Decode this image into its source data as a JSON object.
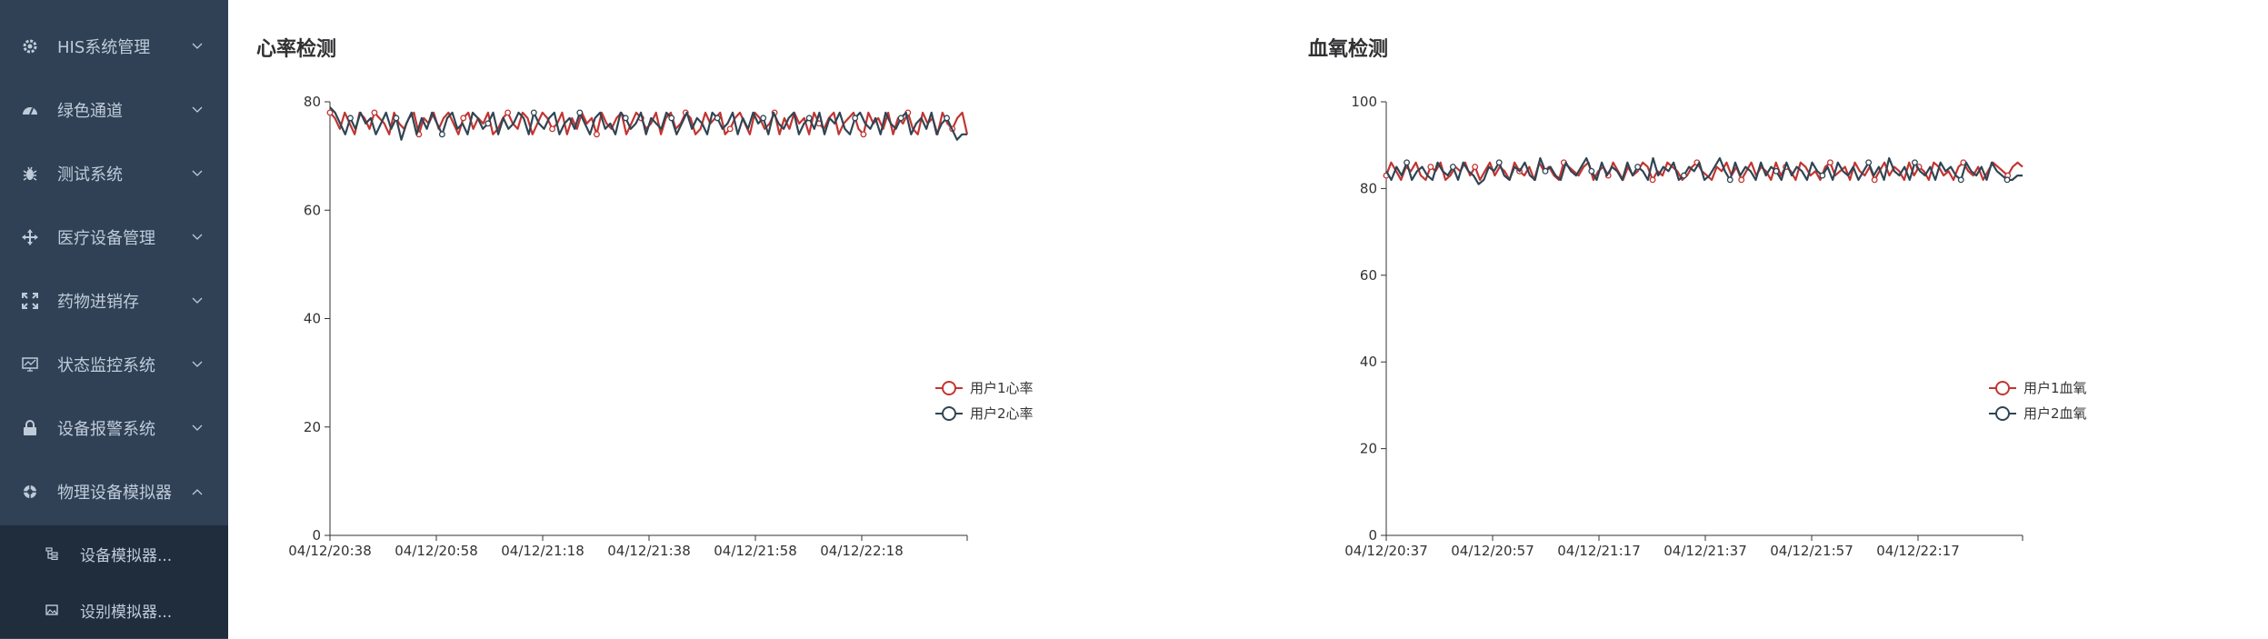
{
  "sidebar": {
    "items": [
      {
        "label": "HIS系统管理",
        "icon": "gear-icon",
        "expanded": false
      },
      {
        "label": "绿色通道",
        "icon": "dashboard-icon",
        "expanded": false
      },
      {
        "label": "测试系统",
        "icon": "bug-icon",
        "expanded": false
      },
      {
        "label": "医疗设备管理",
        "icon": "move-icon",
        "expanded": false
      },
      {
        "label": "药物进销存",
        "icon": "fullscreen-icon",
        "expanded": false
      },
      {
        "label": "状态监控系统",
        "icon": "monitor-icon",
        "expanded": false
      },
      {
        "label": "设备报警系统",
        "icon": "lock-icon",
        "expanded": false
      },
      {
        "label": "物理设备模拟器",
        "icon": "component-icon",
        "expanded": true
      }
    ],
    "subitems": [
      {
        "label": "设备模拟器...",
        "icon": "tree-icon"
      },
      {
        "label": "设别模拟器...",
        "icon": "image-icon"
      }
    ]
  },
  "panels": [
    {
      "title": "心率检测"
    },
    {
      "title": "血氧检测"
    }
  ],
  "chart_data": [
    {
      "type": "line",
      "title": "心率检测",
      "ylim": [
        0,
        80
      ],
      "yticks": [
        0,
        20,
        40,
        60,
        80
      ],
      "x_tick_labels": [
        "04/12/20:38",
        "04/12/20:58",
        "04/12/21:18",
        "04/12/21:38",
        "04/12/21:58",
        "04/12/22:18"
      ],
      "legend_position": "right",
      "grid": false,
      "series": [
        {
          "name": "用户1心率",
          "color": "#c23531",
          "values": [
            78,
            77,
            75,
            78,
            76,
            74,
            78,
            77,
            75,
            78,
            77,
            76,
            74,
            78,
            76,
            75,
            77,
            78,
            74,
            77,
            76,
            78,
            75,
            77,
            78,
            76,
            74,
            77,
            78,
            75,
            77,
            76,
            78,
            74,
            75,
            77,
            78,
            76,
            75,
            78,
            77,
            74,
            76,
            78,
            77,
            75,
            76,
            78,
            74,
            77,
            75,
            78,
            76,
            77,
            74,
            78,
            76,
            75,
            77,
            78,
            74,
            76,
            78,
            77,
            75,
            76,
            78,
            74,
            77,
            78,
            75,
            76,
            78,
            77,
            74,
            75,
            78,
            76,
            77,
            78,
            74,
            75,
            77,
            78,
            76,
            74,
            78,
            77,
            75,
            76,
            78,
            74,
            77,
            75,
            78,
            76,
            77,
            74,
            78,
            76,
            75,
            77,
            78,
            74,
            76,
            77,
            78,
            75,
            74,
            78,
            76,
            77,
            75,
            78,
            74,
            77,
            76,
            78,
            75,
            74,
            78,
            76,
            77,
            74,
            78,
            76,
            75,
            77,
            78,
            74
          ]
        },
        {
          "name": "用户2心率",
          "color": "#2f4554",
          "values": [
            79,
            78,
            76,
            74,
            77,
            75,
            78,
            76,
            77,
            74,
            76,
            78,
            75,
            77,
            73,
            76,
            78,
            74,
            77,
            75,
            78,
            76,
            74,
            77,
            78,
            75,
            76,
            74,
            78,
            77,
            75,
            76,
            78,
            74,
            77,
            75,
            76,
            78,
            77,
            74,
            78,
            76,
            75,
            77,
            78,
            74,
            76,
            77,
            75,
            78,
            76,
            74,
            77,
            78,
            75,
            76,
            74,
            78,
            77,
            75,
            76,
            78,
            74,
            77,
            76,
            75,
            78,
            77,
            74,
            76,
            78,
            75,
            77,
            76,
            74,
            78,
            77,
            75,
            76,
            78,
            74,
            77,
            75,
            78,
            76,
            77,
            74,
            78,
            76,
            75,
            77,
            78,
            74,
            76,
            77,
            75,
            78,
            74,
            77,
            76,
            78,
            75,
            74,
            77,
            78,
            76,
            75,
            77,
            74,
            78,
            76,
            75,
            77,
            78,
            74,
            76,
            77,
            75,
            78,
            74,
            76,
            77,
            75,
            73,
            74,
            74
          ]
        }
      ]
    },
    {
      "type": "line",
      "title": "血氧检测",
      "ylim": [
        0,
        100
      ],
      "yticks": [
        0,
        20,
        40,
        60,
        80,
        100
      ],
      "x_tick_labels": [
        "04/12/20:37",
        "04/12/20:57",
        "04/12/21:17",
        "04/12/21:37",
        "04/12/21:57",
        "04/12/22:17"
      ],
      "legend_position": "right",
      "grid": false,
      "series": [
        {
          "name": "用户1血氧",
          "color": "#c23531",
          "values": [
            83,
            86,
            84,
            82,
            85,
            84,
            86,
            83,
            82,
            85,
            84,
            86,
            82,
            83,
            85,
            84,
            86,
            83,
            85,
            82,
            84,
            86,
            83,
            85,
            84,
            82,
            86,
            84,
            83,
            85,
            82,
            86,
            84,
            85,
            83,
            82,
            86,
            85,
            84,
            83,
            85,
            86,
            82,
            84,
            85,
            83,
            86,
            84,
            82,
            85,
            83,
            84,
            86,
            85,
            82,
            84,
            83,
            86,
            85,
            84,
            82,
            83,
            85,
            86,
            84,
            83,
            82,
            85,
            84,
            86,
            83,
            85,
            82,
            84,
            86,
            83,
            85,
            84,
            82,
            86,
            83,
            85,
            84,
            82,
            86,
            85,
            83,
            84,
            82,
            85,
            86,
            83,
            84,
            85,
            82,
            86,
            84,
            83,
            85,
            82,
            84,
            86,
            83,
            85,
            84,
            82,
            86,
            83,
            85,
            84,
            82,
            86,
            85,
            83,
            84,
            82,
            85,
            86,
            84,
            83,
            85,
            82,
            84,
            86,
            85,
            84,
            83,
            85,
            86,
            85
          ]
        },
        {
          "name": "用户2血氧",
          "color": "#2f4554",
          "values": [
            84,
            82,
            85,
            83,
            86,
            82,
            84,
            85,
            83,
            82,
            86,
            84,
            83,
            85,
            82,
            86,
            84,
            83,
            81,
            82,
            85,
            84,
            86,
            83,
            82,
            85,
            84,
            86,
            83,
            82,
            87,
            84,
            85,
            83,
            82,
            86,
            84,
            83,
            85,
            87,
            84,
            82,
            86,
            83,
            85,
            84,
            82,
            86,
            83,
            85,
            84,
            82,
            87,
            83,
            85,
            84,
            86,
            82,
            83,
            85,
            84,
            86,
            82,
            83,
            85,
            87,
            84,
            82,
            86,
            83,
            85,
            84,
            82,
            86,
            83,
            85,
            84,
            82,
            86,
            83,
            85,
            84,
            82,
            86,
            84,
            83,
            85,
            82,
            86,
            84,
            83,
            85,
            82,
            84,
            86,
            83,
            85,
            82,
            87,
            84,
            83,
            85,
            82,
            86,
            84,
            83,
            85,
            82,
            86,
            84,
            85,
            83,
            82,
            86,
            84,
            83,
            85,
            82,
            86,
            84,
            83,
            82,
            82,
            83,
            83
          ]
        }
      ]
    }
  ]
}
